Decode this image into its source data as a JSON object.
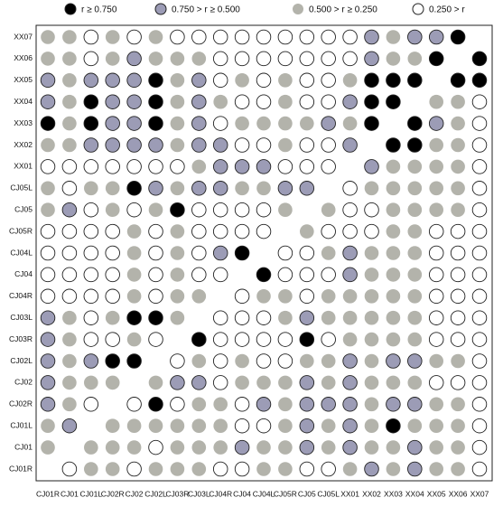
{
  "chart_data": {
    "type": "dot-matrix",
    "legend": [
      {
        "label": "r ≥ 0.750",
        "color": "#000000",
        "outline": true
      },
      {
        "label": "0.750 > r ≥ 0.500",
        "color": "#9c9cb6",
        "outline": true
      },
      {
        "label": "0.500 > r ≥ 0.250",
        "color": "#b3b3ab",
        "outline": false
      },
      {
        "label": "0.250 >  r",
        "color": "#ffffff",
        "outline": true
      }
    ],
    "x_categories": [
      "CJ01R",
      "CJ01",
      "CJ01L",
      "CJ02R",
      "CJ02",
      "CJ02L",
      "CJ03R",
      "CJ03L",
      "CJ04R",
      "CJ04",
      "CJ04L",
      "CJ05R",
      "CJ05",
      "CJ05L",
      "XX01",
      "XX02",
      "XX03",
      "XX04",
      "XX05",
      "XX06",
      "XX07"
    ],
    "y_categories": [
      "XX07",
      "XX06",
      "XX05",
      "XX04",
      "XX03",
      "XX02",
      "XX01",
      "CJ05L",
      "CJ05",
      "CJ05R",
      "CJ04L",
      "CJ04",
      "CJ04R",
      "CJ03L",
      "CJ03R",
      "CJ02L",
      "CJ02",
      "CJ02R",
      "CJ01L",
      "CJ01",
      "CJ01R"
    ],
    "cells": [
      [
        2,
        2,
        3,
        2,
        3,
        2,
        3,
        3,
        3,
        3,
        3,
        3,
        3,
        3,
        3,
        1,
        2,
        1,
        1,
        0,
        null
      ],
      [
        2,
        2,
        3,
        2,
        1,
        2,
        2,
        2,
        3,
        3,
        3,
        3,
        3,
        3,
        3,
        1,
        2,
        2,
        0,
        null,
        0
      ],
      [
        1,
        2,
        1,
        1,
        1,
        0,
        2,
        1,
        3,
        2,
        3,
        2,
        3,
        3,
        2,
        0,
        0,
        0,
        null,
        0,
        0
      ],
      [
        1,
        2,
        0,
        1,
        1,
        0,
        2,
        1,
        2,
        3,
        3,
        2,
        3,
        3,
        1,
        0,
        0,
        null,
        2,
        2,
        3
      ],
      [
        0,
        2,
        0,
        1,
        1,
        0,
        2,
        1,
        3,
        2,
        2,
        2,
        2,
        1,
        2,
        0,
        null,
        0,
        1,
        2,
        3
      ],
      [
        2,
        2,
        1,
        1,
        1,
        1,
        2,
        1,
        1,
        3,
        3,
        2,
        3,
        3,
        1,
        null,
        0,
        0,
        2,
        2,
        3
      ],
      [
        3,
        3,
        3,
        3,
        3,
        3,
        3,
        2,
        1,
        1,
        1,
        3,
        3,
        3,
        null,
        1,
        2,
        2,
        2,
        2,
        3
      ],
      [
        2,
        3,
        2,
        2,
        0,
        1,
        2,
        1,
        1,
        2,
        2,
        1,
        1,
        null,
        3,
        2,
        2,
        2,
        2,
        2,
        3
      ],
      [
        2,
        1,
        3,
        2,
        3,
        2,
        0,
        3,
        3,
        3,
        3,
        2,
        null,
        2,
        3,
        3,
        2,
        2,
        2,
        2,
        3
      ],
      [
        3,
        3,
        3,
        3,
        2,
        3,
        2,
        3,
        3,
        3,
        3,
        null,
        2,
        3,
        3,
        3,
        2,
        2,
        3,
        3,
        3
      ],
      [
        3,
        3,
        3,
        3,
        2,
        3,
        2,
        3,
        1,
        0,
        null,
        3,
        3,
        2,
        1,
        2,
        2,
        2,
        3,
        3,
        3
      ],
      [
        3,
        3,
        3,
        3,
        2,
        3,
        2,
        3,
        3,
        null,
        0,
        3,
        3,
        3,
        1,
        2,
        2,
        2,
        3,
        3,
        3
      ],
      [
        3,
        3,
        3,
        3,
        2,
        3,
        2,
        2,
        null,
        3,
        2,
        2,
        3,
        2,
        2,
        2,
        2,
        2,
        3,
        3,
        3
      ],
      [
        1,
        2,
        3,
        2,
        0,
        0,
        2,
        null,
        3,
        3,
        3,
        2,
        1,
        2,
        2,
        2,
        2,
        2,
        3,
        3,
        3
      ],
      [
        1,
        2,
        3,
        3,
        2,
        3,
        null,
        0,
        3,
        3,
        3,
        3,
        0,
        3,
        2,
        2,
        2,
        2,
        3,
        3,
        3
      ],
      [
        1,
        2,
        1,
        0,
        0,
        null,
        3,
        2,
        3,
        2,
        3,
        3,
        2,
        2,
        1,
        2,
        1,
        1,
        2,
        2,
        3
      ],
      [
        1,
        2,
        2,
        2,
        null,
        2,
        1,
        1,
        3,
        2,
        2,
        2,
        1,
        2,
        1,
        2,
        2,
        2,
        3,
        3,
        3
      ],
      [
        1,
        2,
        3,
        null,
        3,
        0,
        3,
        2,
        2,
        3,
        1,
        2,
        1,
        1,
        1,
        2,
        1,
        1,
        2,
        2,
        3
      ],
      [
        2,
        1,
        null,
        2,
        2,
        2,
        2,
        2,
        2,
        3,
        3,
        2,
        1,
        2,
        1,
        2,
        0,
        2,
        2,
        2,
        3
      ],
      [
        2,
        null,
        2,
        2,
        2,
        3,
        2,
        2,
        2,
        1,
        2,
        2,
        1,
        2,
        1,
        2,
        2,
        1,
        2,
        2,
        3
      ],
      [
        null,
        3,
        2,
        2,
        3,
        2,
        2,
        2,
        3,
        3,
        2,
        2,
        3,
        3,
        2,
        1,
        2,
        1,
        2,
        2,
        3
      ]
    ]
  }
}
